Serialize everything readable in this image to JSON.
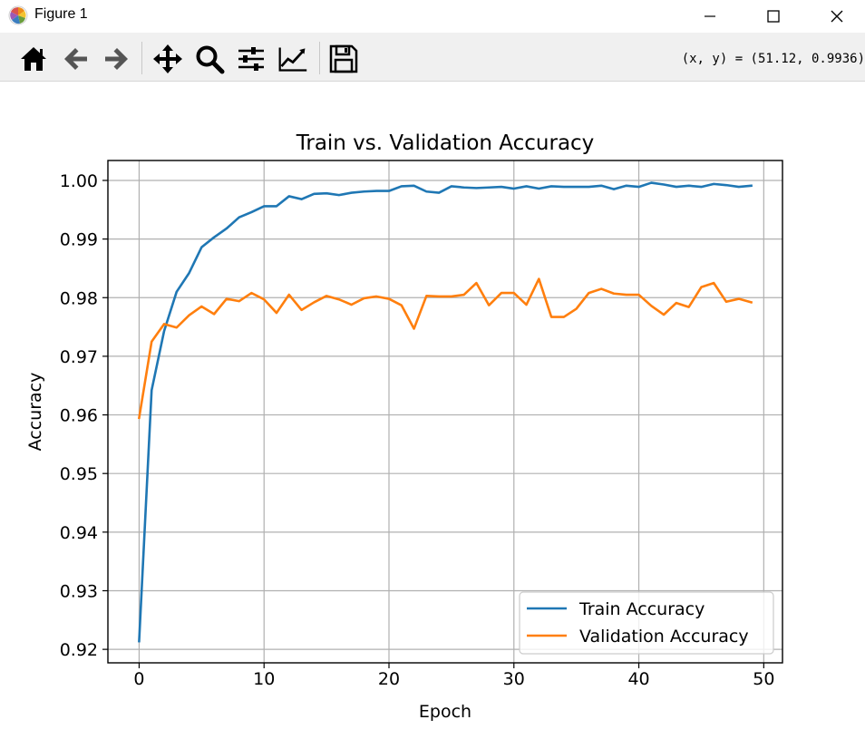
{
  "window": {
    "title": "Figure 1"
  },
  "toolbar": {
    "buttons": [
      "home-icon",
      "back-arrow-icon",
      "forward-arrow-icon",
      "pan-move-icon",
      "zoom-magnifier-icon",
      "configure-subplots-icon",
      "edit-axis-icon",
      "save-disk-icon"
    ],
    "coords": "(x, y) = (51.12, 0.9936)"
  },
  "colors": {
    "train": "#1f77b4",
    "validation": "#ff7f0e",
    "grid": "#b0b0b0"
  },
  "chart_data": {
    "type": "line",
    "title": "Train vs. Validation Accuracy",
    "xlabel": "Epoch",
    "ylabel": "Accuracy",
    "xlim": [
      -2.5,
      51.5
    ],
    "ylim": [
      0.9177,
      1.0034
    ],
    "xticks": [
      0,
      10,
      20,
      30,
      40,
      50
    ],
    "xtick_labels": [
      "0",
      "10",
      "20",
      "30",
      "40",
      "50"
    ],
    "yticks": [
      0.92,
      0.93,
      0.94,
      0.95,
      0.96,
      0.97,
      0.98,
      0.99,
      1.0
    ],
    "ytick_labels": [
      "0.92",
      "0.93",
      "0.94",
      "0.95",
      "0.96",
      "0.97",
      "0.98",
      "0.99",
      "1.00"
    ],
    "grid": true,
    "legend_position": "lower-right",
    "x": [
      0,
      1,
      2,
      3,
      4,
      5,
      6,
      7,
      8,
      9,
      10,
      11,
      12,
      13,
      14,
      15,
      16,
      17,
      18,
      19,
      20,
      21,
      22,
      23,
      24,
      25,
      26,
      27,
      28,
      29,
      30,
      31,
      32,
      33,
      34,
      35,
      36,
      37,
      38,
      39,
      40,
      41,
      42,
      43,
      44,
      45,
      46,
      47,
      48,
      49
    ],
    "series": [
      {
        "name": "Train Accuracy",
        "color": "#1f77b4",
        "values": [
          0.9214,
          0.9642,
          0.9743,
          0.981,
          0.9842,
          0.9886,
          0.9903,
          0.9918,
          0.9937,
          0.9946,
          0.9956,
          0.9956,
          0.9973,
          0.9968,
          0.9977,
          0.9978,
          0.9975,
          0.9979,
          0.9981,
          0.9982,
          0.9982,
          0.999,
          0.9991,
          0.9981,
          0.9979,
          0.999,
          0.9988,
          0.9987,
          0.9988,
          0.9989,
          0.9986,
          0.999,
          0.9986,
          0.999,
          0.9989,
          0.9989,
          0.9989,
          0.9991,
          0.9985,
          0.9991,
          0.9989,
          0.9996,
          0.9993,
          0.9989,
          0.9991,
          0.9989,
          0.9994,
          0.9992,
          0.9989,
          0.9991
        ]
      },
      {
        "name": "Validation Accuracy",
        "color": "#ff7f0e",
        "values": [
          0.9595,
          0.9725,
          0.9755,
          0.9749,
          0.977,
          0.9785,
          0.9772,
          0.9798,
          0.9794,
          0.9808,
          0.9797,
          0.9774,
          0.9805,
          0.9779,
          0.9792,
          0.9803,
          0.9797,
          0.9788,
          0.9799,
          0.9802,
          0.9798,
          0.9787,
          0.9747,
          0.9803,
          0.9802,
          0.9802,
          0.9805,
          0.9825,
          0.9787,
          0.9808,
          0.9808,
          0.9788,
          0.9832,
          0.9767,
          0.9767,
          0.9781,
          0.9808,
          0.9815,
          0.9807,
          0.9805,
          0.9805,
          0.9786,
          0.9771,
          0.9791,
          0.9784,
          0.9818,
          0.9825,
          0.9793,
          0.9798,
          0.9792
        ]
      }
    ]
  }
}
